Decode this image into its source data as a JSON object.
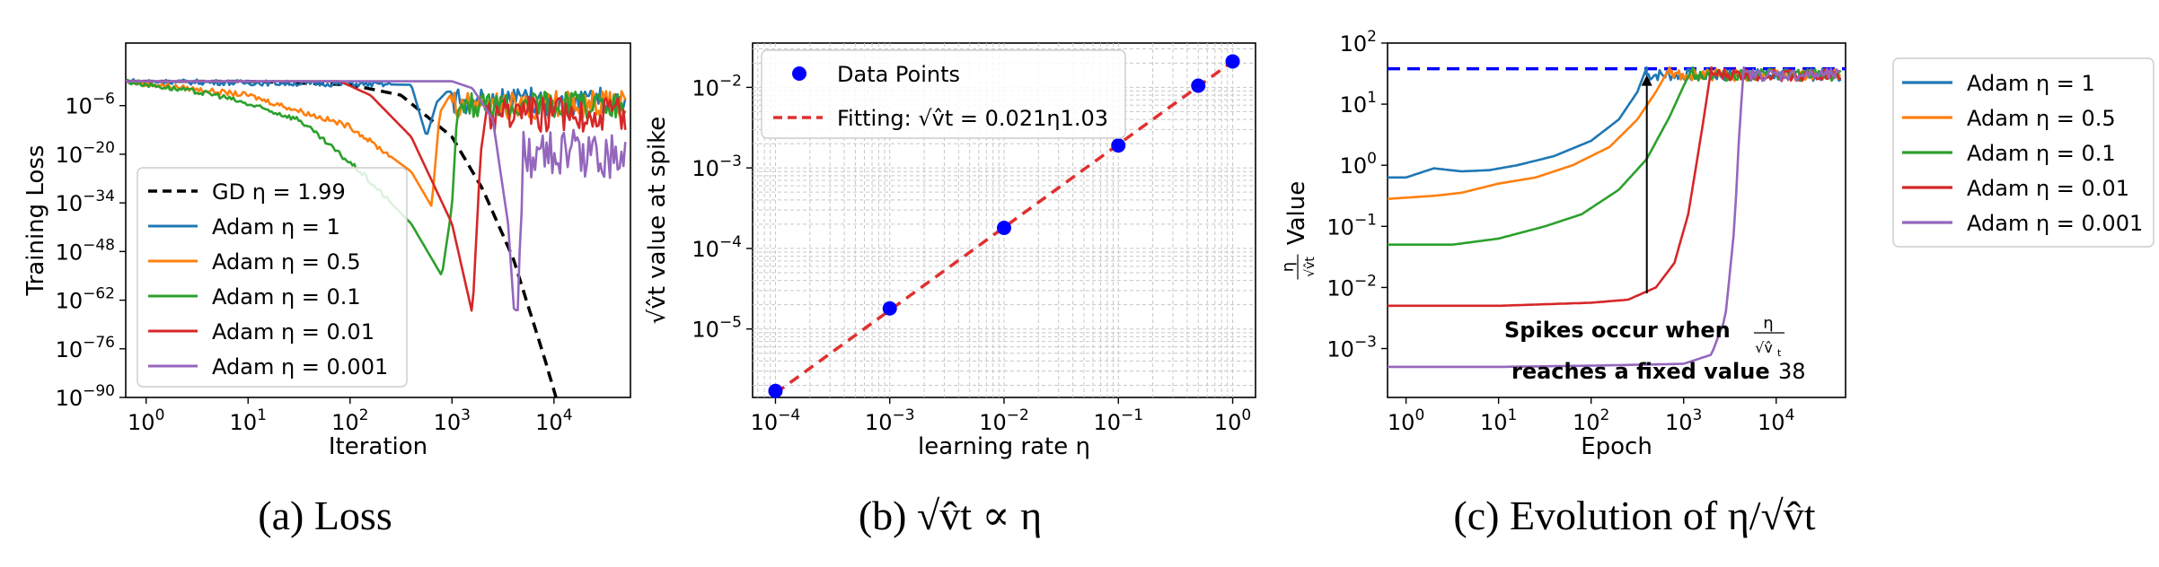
{
  "chart_data": [
    {
      "id": "a",
      "type": "line",
      "caption": "(a) Loss",
      "xlabel": "Iteration",
      "ylabel": "Training Loss",
      "xscale": "log",
      "yscale": "log",
      "xlim_exp": [
        -0.2,
        4.75
      ],
      "ylim_exp": [
        -90,
        12
      ],
      "xticks": [
        {
          "exp": 0,
          "base": "10",
          "sup": "0"
        },
        {
          "exp": 1,
          "base": "10",
          "sup": "1"
        },
        {
          "exp": 2,
          "base": "10",
          "sup": "2"
        },
        {
          "exp": 3,
          "base": "10",
          "sup": "3"
        },
        {
          "exp": 4,
          "base": "10",
          "sup": "4"
        }
      ],
      "yticks": [
        {
          "exp": -6,
          "base": "10",
          "sup": "−6"
        },
        {
          "exp": -20,
          "base": "10",
          "sup": "−20"
        },
        {
          "exp": -34,
          "base": "10",
          "sup": "−34"
        },
        {
          "exp": -48,
          "base": "10",
          "sup": "−48"
        },
        {
          "exp": -62,
          "base": "10",
          "sup": "−62"
        },
        {
          "exp": -76,
          "base": "10",
          "sup": "−76"
        },
        {
          "exp": -90,
          "base": "10",
          "sup": "−90"
        }
      ],
      "legend_position": "lower-left",
      "series": [
        {
          "name": "GD η = 1.99",
          "color": "#000000",
          "dash": "dashed",
          "x_exp": [
            -0.2,
            1.0,
            2.0,
            2.5,
            3.0,
            3.3,
            3.6,
            3.9,
            4.02
          ],
          "y_exp": [
            1,
            1,
            0,
            -3,
            -15,
            -30,
            -50,
            -78,
            -90
          ]
        },
        {
          "name": "Adam η = 1",
          "color": "#1f77b4",
          "dash": "solid",
          "x_exp": [
            -0.2,
            2.6,
            2.75,
            2.85,
            2.95,
            3.05,
            4.7
          ],
          "y_exp": [
            1,
            0,
            -15,
            -5,
            -2,
            -2,
            -2
          ],
          "noise": [
            3.0,
            4.7,
            4
          ]
        },
        {
          "name": "Adam η = 0.5",
          "color": "#ff7f0e",
          "dash": "solid",
          "x_exp": [
            -0.2,
            1.0,
            2.0,
            2.6,
            2.8,
            2.88,
            2.98,
            4.7
          ],
          "y_exp": [
            1,
            -3,
            -12,
            -25,
            -35,
            -8,
            -3,
            -3
          ],
          "noise": [
            3.0,
            4.7,
            4
          ]
        },
        {
          "name": "Adam η = 0.1",
          "color": "#2ca02c",
          "dash": "solid",
          "x_exp": [
            -0.2,
            0.7,
            1.5,
            2.1,
            2.6,
            2.9,
            3.0,
            3.05,
            3.15,
            4.7
          ],
          "y_exp": [
            1,
            -3,
            -10,
            -25,
            -40,
            -55,
            -35,
            -8,
            -3,
            -3
          ],
          "noise": [
            3.1,
            4.7,
            4
          ]
        },
        {
          "name": "Adam η = 0.01",
          "color": "#d62728",
          "dash": "solid",
          "x_exp": [
            -0.2,
            1.9,
            2.2,
            2.6,
            3.0,
            3.2,
            3.28,
            3.35,
            3.5,
            4.7
          ],
          "y_exp": [
            1,
            1,
            -3,
            -15,
            -40,
            -66,
            -20,
            -5,
            -5,
            -5
          ],
          "noise": [
            3.35,
            4.7,
            5
          ]
        },
        {
          "name": "Adam η = 0.001",
          "color": "#9467bd",
          "dash": "solid",
          "x_exp": [
            -0.2,
            3.0,
            3.2,
            3.4,
            3.55,
            3.62,
            3.7,
            4.7
          ],
          "y_exp": [
            1,
            1,
            -1,
            -10,
            -40,
            -70,
            -15,
            -15
          ],
          "noise": [
            3.62,
            4.7,
            7
          ]
        }
      ]
    },
    {
      "id": "b",
      "type": "scatter",
      "caption": "(b) √v̂t ∝ η",
      "xlabel": "learning rate η",
      "ylabel": "√v̂t value at spike",
      "xscale": "log",
      "yscale": "log",
      "xlim_exp": [
        -4.2,
        0.2
      ],
      "ylim_exp": [
        -5.85,
        -1.45
      ],
      "xticks": [
        {
          "exp": -4,
          "base": "10",
          "sup": "−4"
        },
        {
          "exp": -3,
          "base": "10",
          "sup": "−3"
        },
        {
          "exp": -2,
          "base": "10",
          "sup": "−2"
        },
        {
          "exp": -1,
          "base": "10",
          "sup": "−1"
        },
        {
          "exp": 0,
          "base": "10",
          "sup": "0"
        }
      ],
      "yticks": [
        {
          "exp": -5,
          "base": "10",
          "sup": "−5"
        },
        {
          "exp": -4,
          "base": "10",
          "sup": "−4"
        },
        {
          "exp": -3,
          "base": "10",
          "sup": "−3"
        },
        {
          "exp": -2,
          "base": "10",
          "sup": "−2"
        }
      ],
      "legend_position": "upper-left",
      "grid": true,
      "points": {
        "name": "Data Points",
        "color": "#0000ff",
        "x": [
          0.0001,
          0.001,
          0.01,
          0.1,
          0.5,
          1.0
        ],
        "y": [
          1.7e-06,
          1.8e-05,
          0.00018,
          0.0019,
          0.0105,
          0.021
        ]
      },
      "fit": {
        "name": "Fitting: √v̂t = 0.021η1.03",
        "color": "#e03030",
        "coef": 0.021,
        "power": 1.03
      }
    },
    {
      "id": "c",
      "type": "line",
      "caption": "(c) Evolution of η/√v̂t",
      "xlabel": "Epoch",
      "ylabel": "η/√v̂t Value",
      "xscale": "log",
      "yscale": "log",
      "xlim_exp": [
        -0.2,
        4.75
      ],
      "ylim_exp": [
        -3.8,
        2.0
      ],
      "xticks": [
        {
          "exp": 0,
          "base": "10",
          "sup": "0"
        },
        {
          "exp": 1,
          "base": "10",
          "sup": "1"
        },
        {
          "exp": 2,
          "base": "10",
          "sup": "2"
        },
        {
          "exp": 3,
          "base": "10",
          "sup": "3"
        },
        {
          "exp": 4,
          "base": "10",
          "sup": "4"
        }
      ],
      "yticks": [
        {
          "exp": -3,
          "base": "10",
          "sup": "−3"
        },
        {
          "exp": -2,
          "base": "10",
          "sup": "−2"
        },
        {
          "exp": -1,
          "base": "10",
          "sup": "−1"
        },
        {
          "exp": 0,
          "base": "10",
          "sup": "0"
        },
        {
          "exp": 1,
          "base": "10",
          "sup": "1"
        },
        {
          "exp": 2,
          "base": "10",
          "sup": "2"
        }
      ],
      "legend_position": "outside-right",
      "threshold": {
        "value": 38,
        "color": "#0000ff",
        "dash": "dashed"
      },
      "annotation": {
        "line1": "Spikes occur when",
        "line2_bold": "reaches a fixed value",
        "line2_value": "38",
        "arrow_x": 400,
        "arrow_from_y": 0.008,
        "arrow_to_y": 30
      },
      "series": [
        {
          "name": "Adam η = 1",
          "color": "#1f77b4",
          "x_exp": [
            -0.2,
            0.0,
            0.3,
            0.6,
            0.9,
            1.2,
            1.6,
            2.0,
            2.3,
            2.5,
            2.6
          ],
          "y_exp": [
            -0.2,
            -0.2,
            -0.05,
            -0.1,
            -0.08,
            0.0,
            0.15,
            0.4,
            0.75,
            1.2,
            1.6
          ]
        },
        {
          "name": "Adam η = 0.5",
          "color": "#ff7f0e",
          "x_exp": [
            -0.2,
            0.3,
            0.6,
            1.0,
            1.4,
            1.8,
            2.2,
            2.5,
            2.7,
            2.85
          ],
          "y_exp": [
            -0.55,
            -0.5,
            -0.45,
            -0.3,
            -0.2,
            0.0,
            0.3,
            0.75,
            1.2,
            1.6
          ]
        },
        {
          "name": "Adam η = 0.1",
          "color": "#2ca02c",
          "x_exp": [
            -0.2,
            0.5,
            1.0,
            1.5,
            1.9,
            2.3,
            2.6,
            2.85,
            3.0,
            3.1
          ],
          "y_exp": [
            -1.3,
            -1.3,
            -1.2,
            -1.0,
            -0.8,
            -0.4,
            0.1,
            0.8,
            1.3,
            1.6
          ]
        },
        {
          "name": "Adam η = 0.01",
          "color": "#d62728",
          "x_exp": [
            -0.2,
            1.0,
            2.0,
            2.4,
            2.7,
            2.9,
            3.05,
            3.2,
            3.3
          ],
          "y_exp": [
            -2.3,
            -2.3,
            -2.25,
            -2.2,
            -2.0,
            -1.6,
            -0.8,
            0.6,
            1.6
          ]
        },
        {
          "name": "Adam η = 0.001",
          "color": "#9467bd",
          "x_exp": [
            -0.2,
            1.0,
            2.0,
            3.0,
            3.3,
            3.45,
            3.55,
            3.6,
            3.65
          ],
          "y_exp": [
            -3.3,
            -3.3,
            -3.28,
            -3.25,
            -3.1,
            -2.5,
            -1.0,
            0.5,
            1.6
          ]
        }
      ]
    }
  ]
}
